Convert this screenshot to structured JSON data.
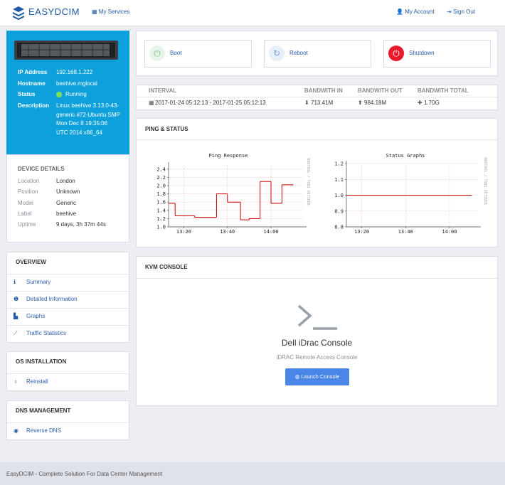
{
  "header": {
    "logo": "EASYDCIM",
    "nav": "My Services",
    "account": "My Account",
    "sign_out": "Sign Out"
  },
  "server": {
    "fields": [
      {
        "label": "IP Address",
        "value": "192.168.1.222"
      },
      {
        "label": "Hostname",
        "value": "beehive.mglocal"
      },
      {
        "label": "Status",
        "value": "Running"
      },
      {
        "label": "Description",
        "value": "Linux beehive 3.13.0-43-generic #72-Ubuntu SMP Mon Dec 8 19:35:06 UTC 2014 x86_64"
      }
    ]
  },
  "device_details": {
    "title": "DEVICE DETAILS",
    "fields": [
      {
        "label": "Location",
        "value": "London"
      },
      {
        "label": "Position",
        "value": "Unknown"
      },
      {
        "label": "Model",
        "value": "Generic"
      },
      {
        "label": "Label",
        "value": "beehive"
      },
      {
        "label": "Uptime",
        "value": "9 days, 3h 37m 44s"
      }
    ]
  },
  "sidebar": [
    {
      "title": "OVERVIEW",
      "items": [
        "Summary",
        "Detailed Information",
        "Graphs",
        "Traffic Statistics"
      ]
    },
    {
      "title": "OS INSTALLATION",
      "items": [
        "Reinstall"
      ]
    },
    {
      "title": "DNS MANAGEMENT",
      "items": [
        "Reverse DNS"
      ]
    }
  ],
  "actions": [
    "Boot",
    "Reboot",
    "Shutdown"
  ],
  "bandwidth": {
    "headers": [
      "INTERVAL",
      "BANDWITH IN",
      "BANDWITH OUT",
      "BANDWITH TOTAL"
    ],
    "rows": [
      [
        "2017-01-24 05:12:13 - 2017-01-25 05:12:13",
        "713.41M",
        "984.18M",
        "1.70G"
      ]
    ]
  },
  "ping_status": {
    "title": "PING & STATUS",
    "charts": [
      {
        "type": "line",
        "title": "Ping Response",
        "watermark": "RRDTOOL / TOBI OETIKER",
        "step": true,
        "x": [
          793,
          796,
          805,
          815,
          820,
          826,
          830,
          835,
          840,
          845,
          850
        ],
        "series": [
          {
            "color": "#cc0000",
            "values": [
              1.57,
              1.27,
              1.23,
              1.8,
              1.6,
              1.17,
              1.2,
              2.1,
              1.57,
              2.02,
              2.02
            ]
          }
        ],
        "xlim": [
          793,
          855
        ],
        "xticks": [
          {
            "value": 800,
            "label": "13:20"
          },
          {
            "value": 820,
            "label": "13:40"
          },
          {
            "value": 840,
            "label": "14:00"
          }
        ],
        "ylim": [
          1.0,
          2.5
        ],
        "yticks": [
          {
            "value": 1.0,
            "label": "1.0"
          },
          1.2,
          1.4,
          1.6,
          1.8,
          {
            "value": 2.0,
            "label": "2.0"
          },
          2.2,
          2.4
        ],
        "grid": true
      },
      {
        "type": "line",
        "title": "Status Graphs",
        "watermark": "RRDTOOL / TOBI OETIKER",
        "step": true,
        "x": [
          793,
          850
        ],
        "series": [
          {
            "color": "#cc0000",
            "values": [
              1.0,
              1.0
            ]
          }
        ],
        "xlim": [
          793,
          853
        ],
        "xticks": [
          {
            "value": 800,
            "label": "13:20"
          },
          {
            "value": 820,
            "label": "13:40"
          },
          {
            "value": 840,
            "label": "14:00"
          }
        ],
        "ylim": [
          0.8,
          1.2
        ],
        "yticks": [
          0.8,
          0.9,
          {
            "value": 1.0,
            "label": "1.0"
          },
          1.1,
          1.2
        ],
        "grid": true
      }
    ]
  },
  "kvm": {
    "title": "KVM CONSOLE",
    "heading": "Dell iDrac Console",
    "subtitle": "iDRAC Remote Access Console",
    "button": "Launch Console"
  },
  "footer": "EasyDCIM - Complete Solution For Data Center Management"
}
